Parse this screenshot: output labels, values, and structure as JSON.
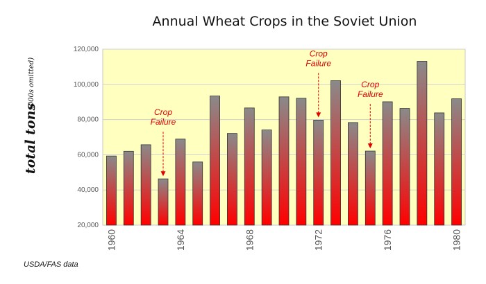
{
  "chart_data": {
    "type": "bar",
    "title": "Annual Wheat Crops in the Soviet Union",
    "ylabel": "total tons",
    "yunit": "(000s omitted)",
    "source": "USDA/FAS data",
    "x": [
      1960,
      1961,
      1962,
      1963,
      1964,
      1965,
      1966,
      1967,
      1968,
      1969,
      1970,
      1971,
      1972,
      1973,
      1974,
      1975,
      1976,
      1977,
      1978,
      1979,
      1980
    ],
    "values": [
      59300,
      62000,
      65700,
      46300,
      68900,
      55900,
      93400,
      72100,
      86600,
      74100,
      92900,
      92100,
      79700,
      102100,
      78300,
      62100,
      90100,
      86300,
      113100,
      83800,
      91800
    ],
    "ylim": [
      20000,
      120000
    ],
    "yticks": [
      20000,
      40000,
      60000,
      80000,
      100000,
      120000
    ],
    "ytick_labels": [
      "20,000",
      "40,000",
      "60,000",
      "80,000",
      "100,000",
      "120,000"
    ],
    "xtick_labels": [
      "1960",
      "1964",
      "1968",
      "1972",
      "1976",
      "1980"
    ],
    "grid": true,
    "annotations": [
      {
        "lines": [
          "Crop",
          "Failure"
        ],
        "target_year": 1963
      },
      {
        "lines": [
          "Crop",
          "Failure"
        ],
        "target_year": 1972
      },
      {
        "lines": [
          "Crop",
          "Failure"
        ],
        "target_year": 1975
      }
    ],
    "colors": {
      "plot_bg": "#ffffc0",
      "bar_top": "#8a8a8a",
      "bar_bottom": "#ff0000",
      "annotation": "#e00000"
    }
  }
}
